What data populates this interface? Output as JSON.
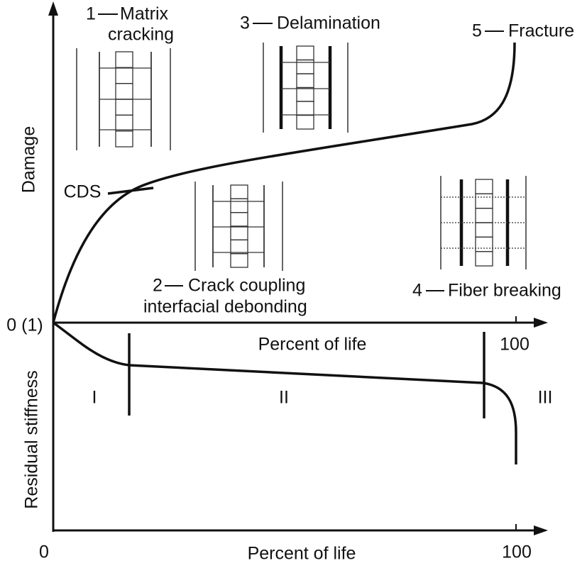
{
  "axes": {
    "upper": {
      "y_label": "Damage",
      "origin": "0 (1)",
      "x_label": "Percent of life",
      "x_end": "100"
    },
    "lower": {
      "y_label": "Residual stiffness",
      "origin": "0",
      "x_label": "Percent of life",
      "x_end": "100"
    }
  },
  "stages": [
    {
      "number": "1",
      "lines": [
        "Matrix",
        "cracking"
      ]
    },
    {
      "number": "2",
      "lines": [
        "Crack coupling",
        "interfacial debonding"
      ]
    },
    {
      "number": "3",
      "lines": [
        "Delamination"
      ]
    },
    {
      "number": "4",
      "lines": [
        "Fiber breaking"
      ]
    },
    {
      "number": "5",
      "lines": [
        "Fracture"
      ]
    }
  ],
  "cds": "CDS",
  "regions": [
    "I",
    "II",
    "III"
  ]
}
